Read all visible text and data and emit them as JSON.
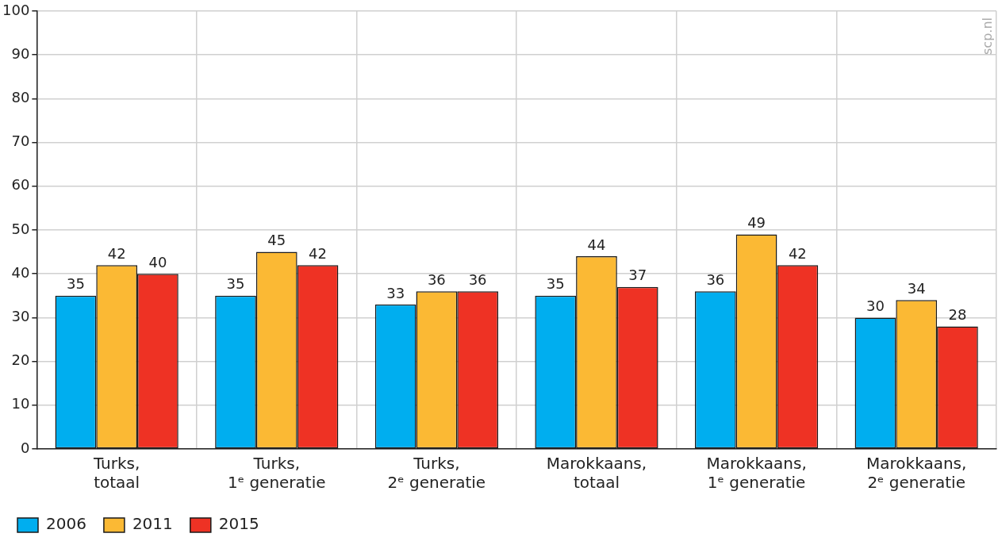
{
  "chart_data": {
    "type": "bar",
    "categories": [
      "Turks,\ntotaal",
      "Turks,\n1ᵉ generatie",
      "Turks,\n2ᵉ generatie",
      "Marokkaans,\ntotaal",
      "Marokkaans,\n1ᵉ generatie",
      "Marokkaans,\n2ᵉ generatie"
    ],
    "series": [
      {
        "name": "2006",
        "color": "#00aeef",
        "values": [
          35,
          35,
          33,
          35,
          36,
          30
        ]
      },
      {
        "name": "2011",
        "color": "#fbb934",
        "values": [
          42,
          45,
          36,
          44,
          49,
          34
        ]
      },
      {
        "name": "2015",
        "color": "#ee3224",
        "values": [
          40,
          42,
          36,
          37,
          42,
          28
        ]
      }
    ],
    "ylim": [
      0,
      100
    ],
    "yticks": [
      0,
      10,
      20,
      30,
      40,
      50,
      60,
      70,
      80,
      90,
      100
    ],
    "grid": true,
    "legend": "bottom left",
    "data_labels": true,
    "annotations": [
      "scp.nl"
    ]
  }
}
